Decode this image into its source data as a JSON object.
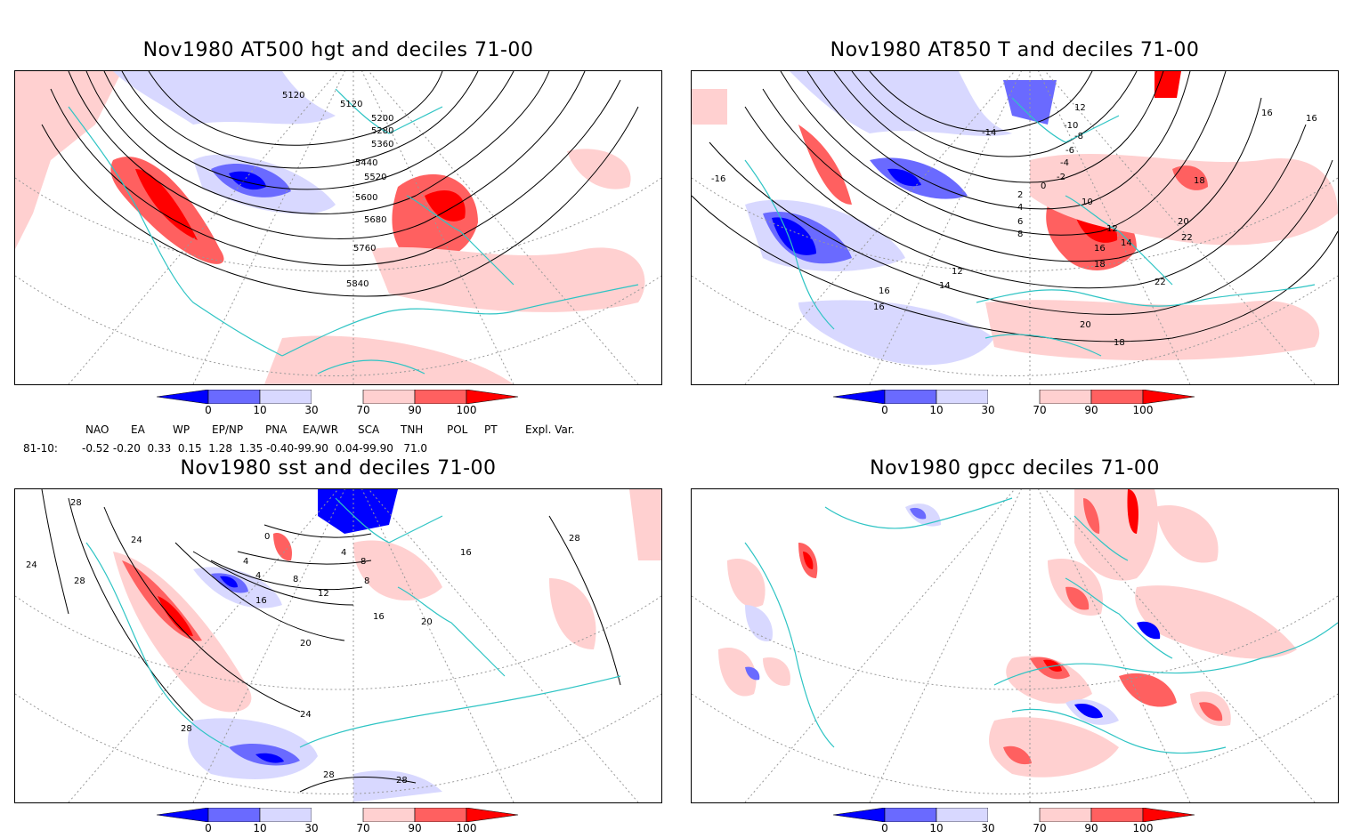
{
  "panels": [
    {
      "title": "Nov1980 AT500 hgt and deciles 71-00",
      "contour_labels": [
        "5120",
        "5120",
        "5200",
        "5280",
        "5360",
        "5440",
        "5520",
        "5600",
        "5680",
        "5760",
        "5840"
      ]
    },
    {
      "title": "Nov1980 AT850 T and deciles 71-00",
      "contour_labels": [
        "16",
        "-16",
        "16",
        "12",
        "-10",
        "-8",
        "-6",
        "-4",
        "-2",
        "0",
        "-14",
        "2",
        "4",
        "6",
        "8",
        "10",
        "12",
        "14",
        "16",
        "18",
        "18",
        "20",
        "22",
        "22",
        "12",
        "14",
        "16",
        "16",
        "20",
        "18"
      ]
    },
    {
      "title": "Nov1980 sst and deciles 71-00",
      "contour_labels": [
        "28",
        "24",
        "28",
        "24",
        "0",
        "4",
        "4",
        "8",
        "4",
        "8",
        "16",
        "12",
        "8",
        "16",
        "16",
        "20",
        "20",
        "28",
        "24",
        "28",
        "28",
        "28"
      ]
    },
    {
      "title": "Nov1980 gpcc deciles 71-00",
      "contour_labels": []
    }
  ],
  "colorbar": {
    "labels": [
      "0",
      "10",
      "30",
      "70",
      "90",
      "100"
    ],
    "colors": [
      "#0000ff",
      "#6a6aff",
      "#d8d8ff",
      "#ffffff",
      "#ffd0d0",
      "#ff6060",
      "#ff0000"
    ]
  },
  "indices": {
    "headers": [
      "NAO",
      "EA",
      "WP",
      "EP/NP",
      "PNA",
      "EA/WR",
      "SCA",
      "TNH",
      "POL",
      "PT",
      "Expl. Var."
    ],
    "row_label": "81-10:",
    "values_line": "-0.52 -0.20  0.33  0.15  1.28  1.35 -0.40-99.90  0.04-99.90   71.0"
  },
  "colors": {
    "coast": "#2ec4c4",
    "grid": "#999999",
    "blue_dark": "#0000ff",
    "blue_mid": "#6a6aff",
    "blue_light": "#d8d8ff",
    "red_light": "#ffd0d0",
    "red_mid": "#ff6060",
    "red_dark": "#ff0000"
  }
}
